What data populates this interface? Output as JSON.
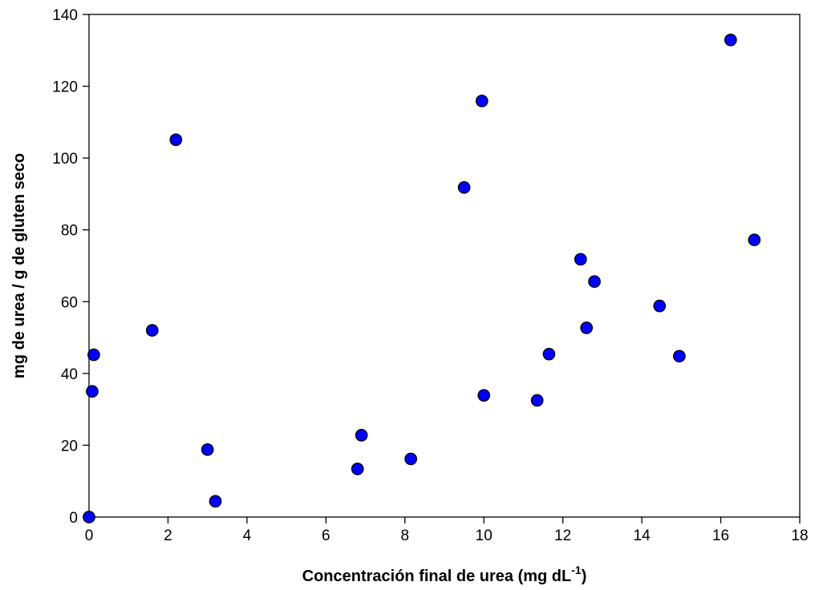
{
  "chart_data": {
    "type": "scatter",
    "title": "",
    "xlabel": "Concentración final de urea (mg dL",
    "xlabel_superscript": "-1",
    "xlabel_suffix": ")",
    "ylabel": "mg de urea / g de gluten seco",
    "xlim": [
      0,
      18
    ],
    "ylim": [
      0,
      140
    ],
    "x_ticks": [
      0,
      2,
      4,
      6,
      8,
      10,
      12,
      14,
      16,
      18
    ],
    "y_ticks": [
      0,
      20,
      40,
      60,
      80,
      100,
      120,
      140
    ],
    "grid": false,
    "legend": "none",
    "marker_color": "#0000ff",
    "marker_edge_color": "#000000",
    "series": [
      {
        "points": [
          {
            "x": 0.0,
            "y": 0.0
          },
          {
            "x": 0.08,
            "y": 35.0
          },
          {
            "x": 0.12,
            "y": 45.2
          },
          {
            "x": 1.6,
            "y": 52.0
          },
          {
            "x": 2.2,
            "y": 105.1
          },
          {
            "x": 3.0,
            "y": 18.8
          },
          {
            "x": 3.2,
            "y": 4.4
          },
          {
            "x": 6.8,
            "y": 13.4
          },
          {
            "x": 6.9,
            "y": 22.8
          },
          {
            "x": 8.15,
            "y": 16.2
          },
          {
            "x": 9.5,
            "y": 91.8
          },
          {
            "x": 9.95,
            "y": 115.9
          },
          {
            "x": 10.0,
            "y": 33.9
          },
          {
            "x": 11.35,
            "y": 32.5
          },
          {
            "x": 11.65,
            "y": 45.4
          },
          {
            "x": 12.45,
            "y": 71.8
          },
          {
            "x": 12.6,
            "y": 52.7
          },
          {
            "x": 12.8,
            "y": 65.6
          },
          {
            "x": 14.45,
            "y": 58.8
          },
          {
            "x": 14.95,
            "y": 44.8
          },
          {
            "x": 16.25,
            "y": 132.9
          },
          {
            "x": 16.85,
            "y": 77.2
          }
        ]
      }
    ]
  }
}
